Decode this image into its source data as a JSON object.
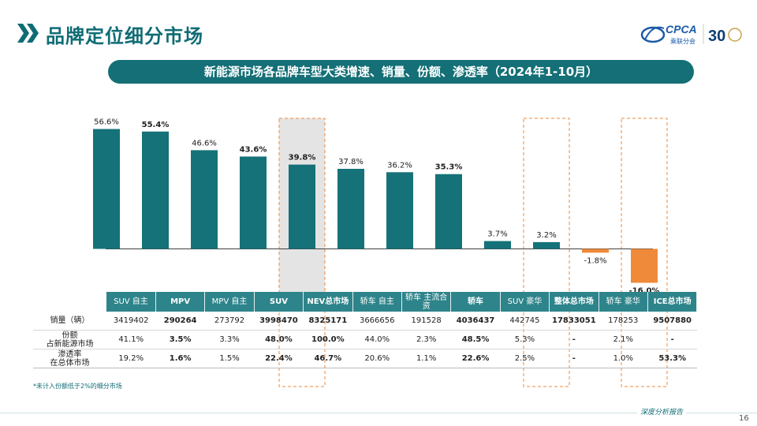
{
  "header": {
    "title": "品牌定位细分市场",
    "logo_text": "CPCA",
    "logo_subtext": "乘联分会",
    "anniversary": "30"
  },
  "chart_title": "新能源市场各品牌车型大类增速、销量、份额、渗透率（2024年1-10月）",
  "chart_data": {
    "type": "bar",
    "categories": [
      "SUV 自主",
      "MPV",
      "MPV 自主",
      "SUV",
      "NEV总市场",
      "轿车 自主",
      "轿车 主流合资",
      "轿车",
      "SUV 豪华",
      "整体总市场",
      "轿车 豪华",
      "ICE总市场"
    ],
    "values": [
      56.6,
      55.4,
      46.6,
      43.6,
      39.8,
      37.8,
      36.2,
      35.3,
      3.7,
      3.2,
      -1.8,
      -16.0
    ],
    "value_labels": [
      "56.6%",
      "55.4%",
      "46.6%",
      "43.6%",
      "39.8%",
      "37.8%",
      "36.2%",
      "35.3%",
      "3.7%",
      "3.2%",
      "-1.8%",
      "-16.0%"
    ],
    "bold_labels": [
      false,
      true,
      false,
      true,
      true,
      false,
      false,
      true,
      false,
      false,
      false,
      true
    ],
    "ylim": [
      -16.0,
      56.6
    ],
    "grid": false,
    "colors": {
      "positive": "#157278",
      "negative": "#ef8a3a",
      "highlight_fill": "#e4e4e4",
      "highlight_border": "#ef8a3a"
    },
    "highlight_indices": [
      4,
      9,
      11
    ]
  },
  "table": {
    "headers": [
      {
        "text": "SUV 自主",
        "bold": false
      },
      {
        "text": "MPV",
        "bold": true
      },
      {
        "text": "MPV 自主",
        "bold": false
      },
      {
        "text": "SUV",
        "bold": true
      },
      {
        "text": "NEV总市场",
        "bold": true
      },
      {
        "text": "轿车 自主",
        "bold": false
      },
      {
        "text": "轿车 主流合资",
        "bold": false
      },
      {
        "text": "轿车",
        "bold": true
      },
      {
        "text": "SUV 豪华",
        "bold": false
      },
      {
        "text": "整体总市场",
        "bold": true
      },
      {
        "text": "轿车 豪华",
        "bold": false
      },
      {
        "text": "ICE总市场",
        "bold": true
      }
    ],
    "rows": [
      {
        "label": "销量（辆）",
        "values": [
          "3419402",
          "290264",
          "273792",
          "3998470",
          "8325171",
          "3666656",
          "191528",
          "4036437",
          "442745",
          "17833051",
          "178253",
          "9507880"
        ]
      },
      {
        "label": "份额\n占新能源市场",
        "values": [
          "41.1%",
          "3.5%",
          "3.3%",
          "48.0%",
          "100.0%",
          "44.0%",
          "2.3%",
          "48.5%",
          "5.3%",
          "-",
          "2.1%",
          "-"
        ]
      },
      {
        "label": "渗透率\n在总体市场",
        "values": [
          "19.2%",
          "1.6%",
          "1.5%",
          "22.4%",
          "46.7%",
          "20.6%",
          "1.1%",
          "22.6%",
          "2.5%",
          "-",
          "1.0%",
          "53.3%"
        ]
      }
    ]
  },
  "footnote": "*未计入份额低于2%的细分市场",
  "footer": {
    "text": "深度分析报告",
    "page": "16"
  }
}
